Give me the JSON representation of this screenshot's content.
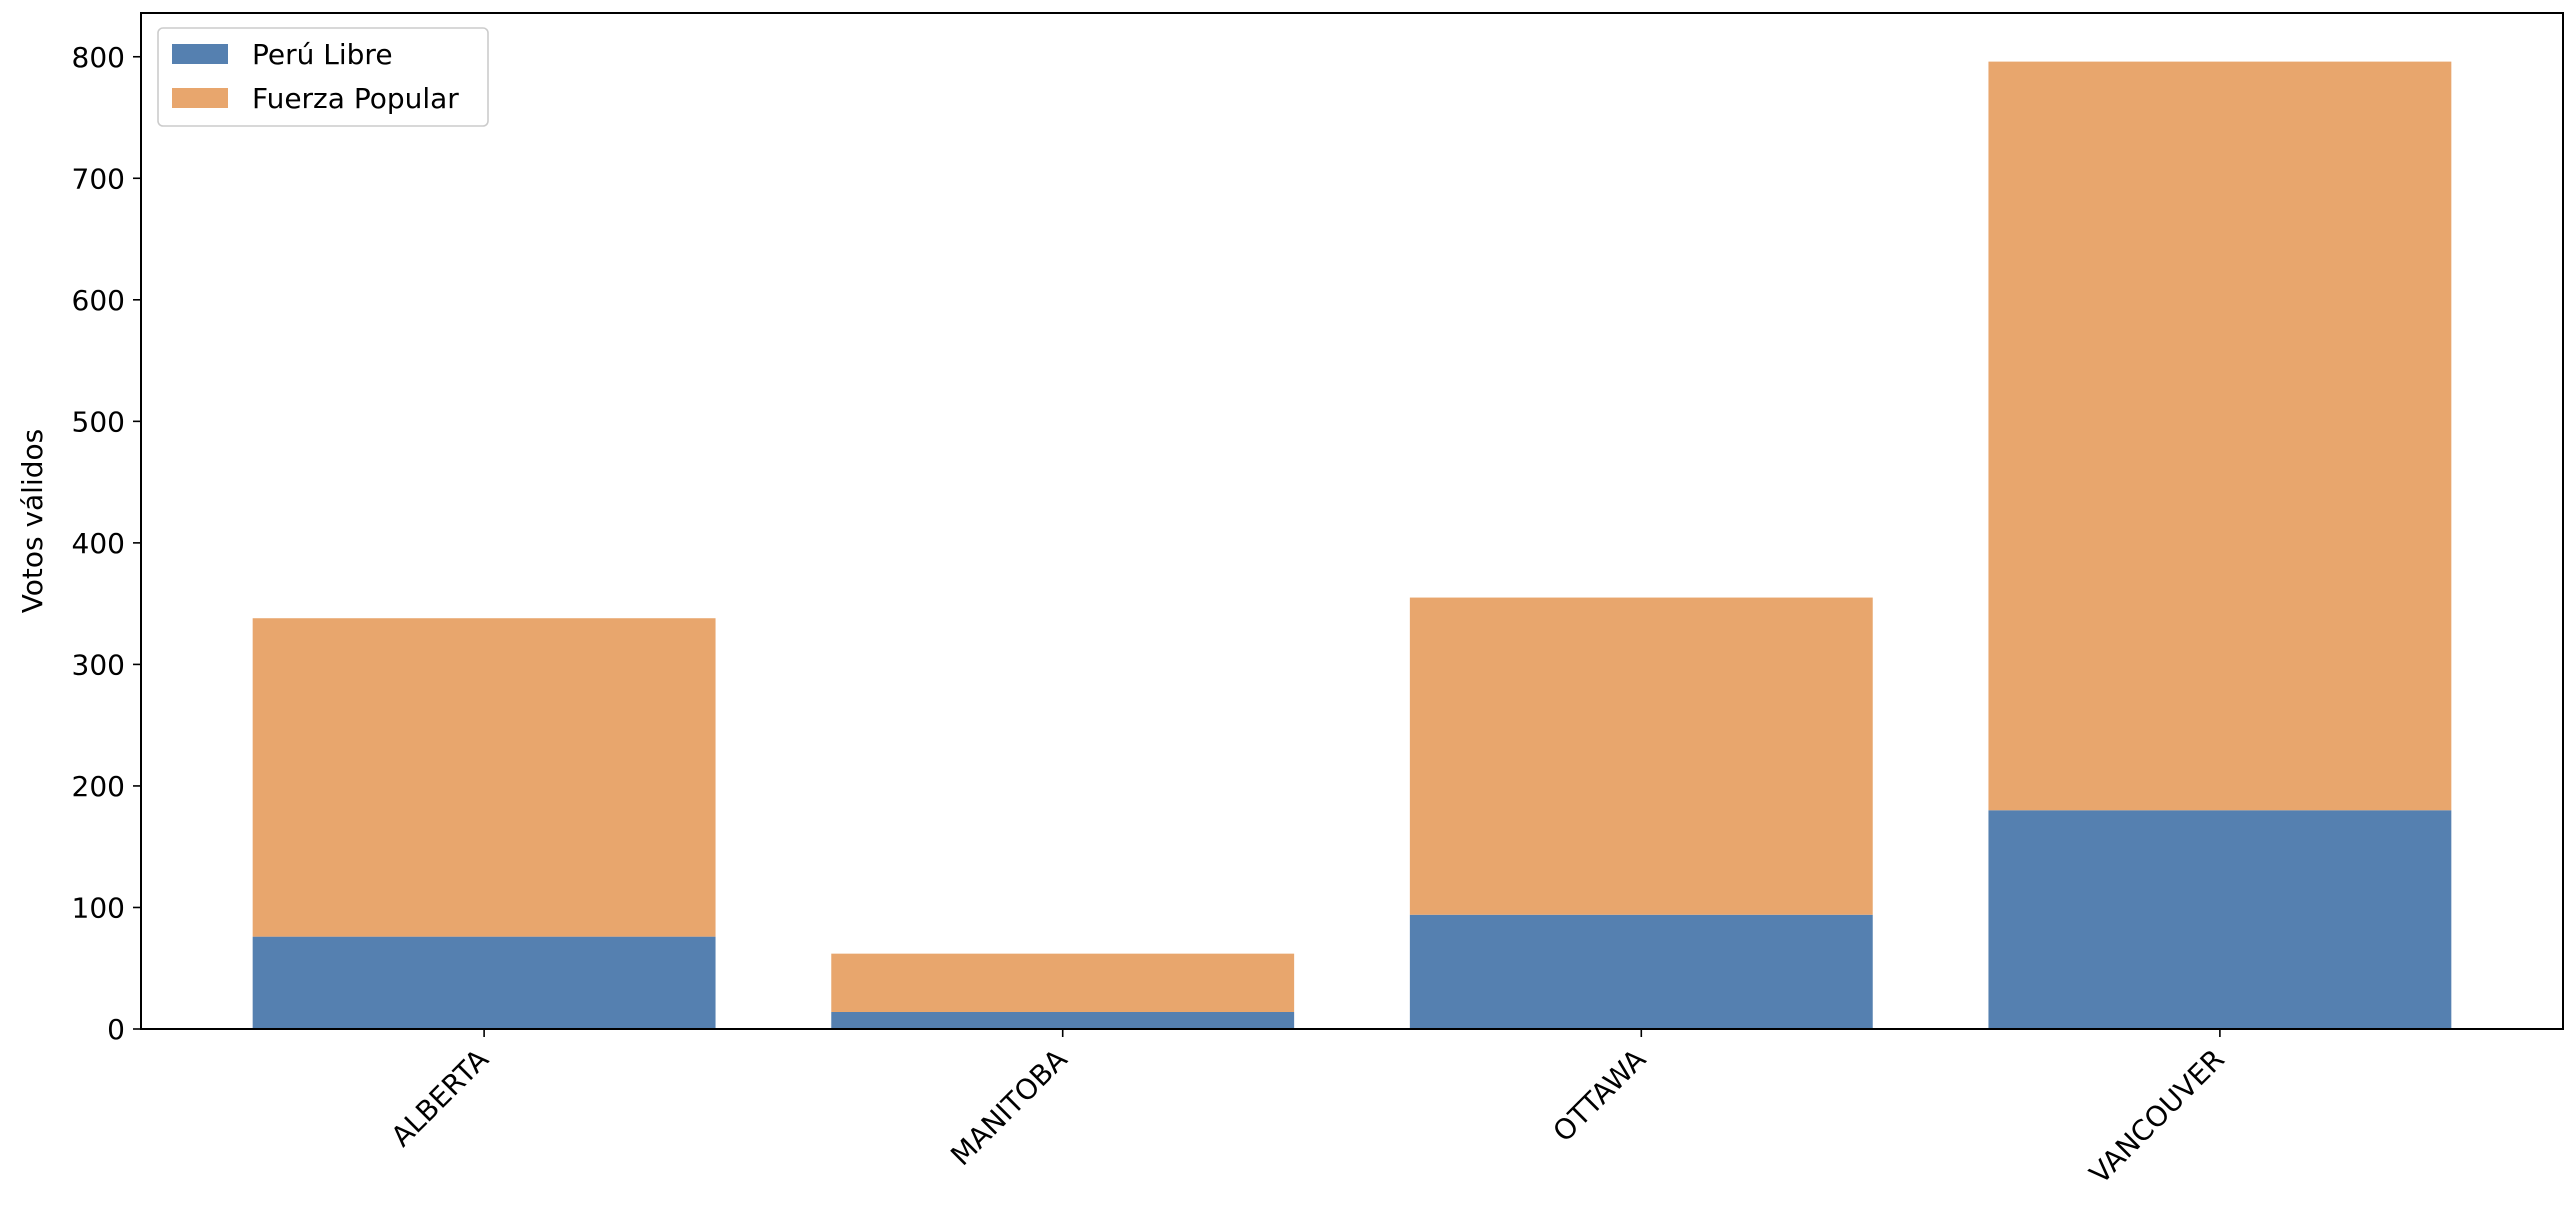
{
  "chart_data": {
    "type": "bar",
    "stacked": true,
    "y_label": "Votos válidos",
    "categories": [
      "ALBERTA",
      "MANITOBA",
      "OTTAWA",
      "VANCOUVER"
    ],
    "series": [
      {
        "name": "Perú Libre",
        "color": "#5580b0",
        "values": [
          76,
          14,
          94,
          180
        ]
      },
      {
        "name": "Fuerza Popular",
        "color": "#e8a66d",
        "values": [
          262,
          48,
          261,
          616
        ]
      }
    ],
    "ylim": [
      0,
      836
    ],
    "yticks": [
      0,
      100,
      200,
      300,
      400,
      500,
      600,
      700,
      800
    ],
    "grid": false,
    "legend": "upper left"
  }
}
